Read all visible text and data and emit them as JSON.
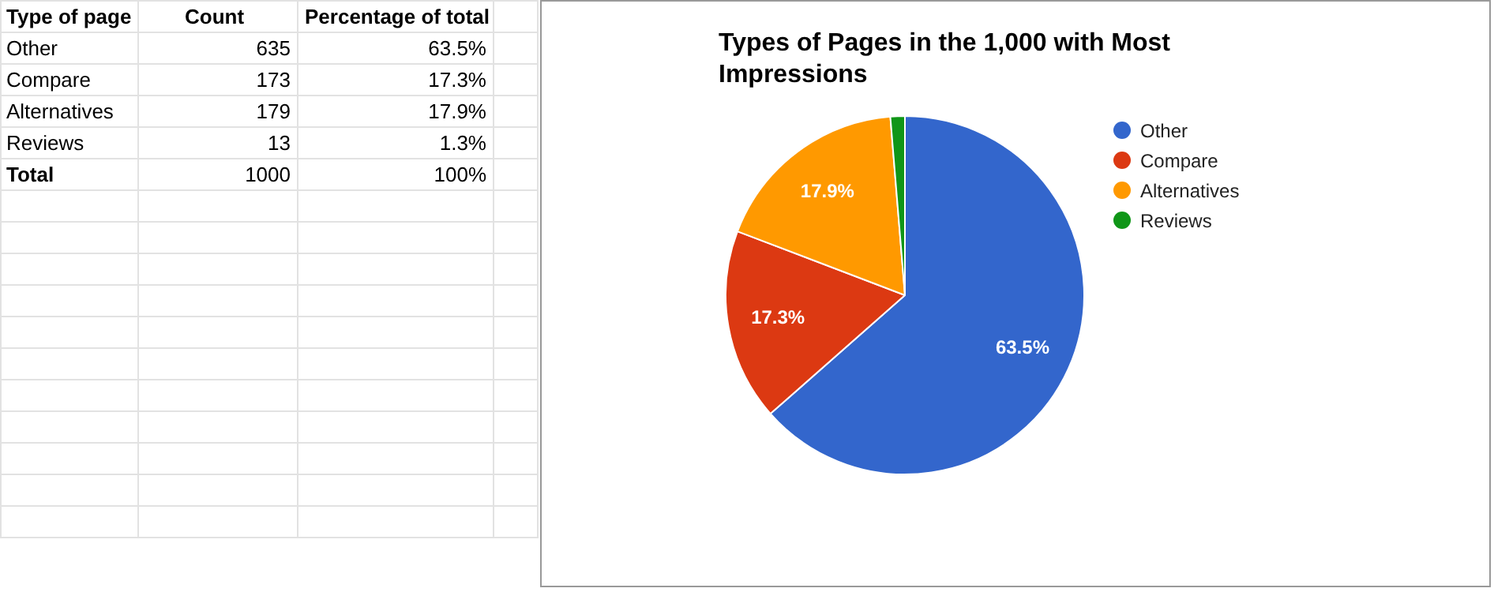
{
  "chart_data": [
    {
      "type": "other",
      "annotations": [
        "Type of page",
        "Count",
        "Percentage of total",
        "Other",
        "635",
        "63.5%",
        "Compare",
        "173",
        "17.3%",
        "Alternatives",
        "179",
        "17.9%",
        "Reviews",
        "13",
        "1.3%",
        "Total",
        "1000",
        "100%"
      ]
    },
    {
      "type": "pie",
      "title": "Types of Pages in the 1,000 with Most Impressions",
      "categories": [
        "Other",
        "Compare",
        "Alternatives",
        "Reviews"
      ],
      "values": [
        63.5,
        17.3,
        17.9,
        1.3
      ],
      "value_labels": [
        "63.5%",
        "17.3%",
        "17.9%",
        null
      ],
      "colors": [
        "#3366cc",
        "#dc3912",
        "#ff9900",
        "#109618"
      ],
      "legend": "right"
    }
  ]
}
